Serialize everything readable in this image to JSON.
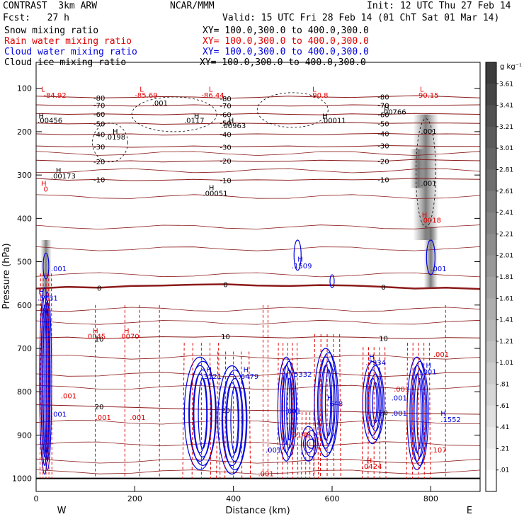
{
  "header": {
    "model": "CONTRAST  3km ARW",
    "center": "NCAR/MMM",
    "init": "Init: 12 UTC Thu 27 Feb 14",
    "fcst": "Fcst:   27 h",
    "valid": "Valid: 15 UTC Fri 28 Feb 14 (01 ChT Sat 01 Mar 14)",
    "fields": [
      {
        "name": "Snow mixing ratio",
        "xy": "XY= 100.0,300.0 to 400.0,300.0",
        "color": "#000000"
      },
      {
        "name": "Rain water mixing ratio",
        "xy": "XY= 100.0,300.0 to 400.0,300.0",
        "color": "#e00000"
      },
      {
        "name": "Cloud water mixing ratio",
        "xy": "XY= 100.0,300.0 to 400.0,300.0",
        "color": "#0000e0"
      },
      {
        "name": "Cloud ice mixing ratio",
        "xy": "XY= 100.0,300.0 to 400.0,300.0",
        "color": "#000000"
      }
    ]
  },
  "chart_data": {
    "type": "contour",
    "ylabel": "Pressure (hPa)",
    "xlabel": "Distance (km)",
    "xlim": [
      0,
      900
    ],
    "ylim": [
      1030,
      40
    ],
    "x_ticks": [
      0,
      200,
      400,
      600,
      800
    ],
    "x_tick_labels": [
      "0",
      "200",
      "400",
      "600",
      "800"
    ],
    "y_ticks": [
      100,
      200,
      300,
      400,
      500,
      600,
      700,
      800,
      900,
      1000
    ],
    "y_tick_labels": [
      "100",
      "200",
      "300",
      "400",
      "500",
      "600",
      "700",
      "800",
      "900",
      "1000"
    ],
    "west_label": "W",
    "east_label": "E",
    "colorbar": {
      "unit": "g kg⁻¹",
      "labels": [
        "3.61",
        "3.41",
        "3.21",
        "3.01",
        "2.81",
        "2.61",
        "2.41",
        "2.21",
        "2.01",
        "1.81",
        "1.61",
        "1.41",
        "1.21",
        "1.01",
        ".81",
        ".61",
        ".41",
        ".21",
        ".01"
      ]
    },
    "isotherms": [
      {
        "level": -80,
        "p": [
          118,
          120,
          122,
          121,
          119,
          120,
          123,
          121,
          118,
          120,
          121,
          119,
          117,
          119,
          122
        ],
        "label": "-80"
      },
      {
        "level": -70,
        "p": [
          138,
          140,
          139,
          141,
          140,
          138,
          140,
          139,
          141,
          140,
          138,
          139,
          140,
          139,
          138
        ],
        "label": "-70"
      },
      {
        "level": -60,
        "p": [
          158,
          160,
          159,
          160,
          161,
          159,
          160,
          158,
          160,
          161,
          159,
          160,
          158,
          159,
          160
        ],
        "label": "-60"
      },
      {
        "level": -50,
        "p": [
          180,
          182,
          181,
          180,
          183,
          182,
          180,
          181,
          182,
          180,
          179,
          181,
          180,
          180,
          181
        ],
        "label": "-50"
      },
      {
        "level": -40,
        "p": [
          205,
          207,
          206,
          205,
          208,
          207,
          206,
          205,
          206,
          207,
          205,
          204,
          206,
          205,
          206
        ],
        "label": "-40"
      },
      {
        "level": -30,
        "p": [
          233,
          235,
          234,
          236,
          235,
          233,
          235,
          234,
          233,
          235,
          234,
          232,
          233,
          234,
          234
        ],
        "label": "-30"
      },
      {
        "level": -20,
        "p": [
          266,
          268,
          269,
          267,
          270,
          268,
          267,
          269,
          268,
          266,
          267,
          268,
          264,
          266,
          267
        ],
        "label": "-20"
      },
      {
        "level": -10,
        "p": [
          308,
          312,
          310,
          313,
          312,
          310,
          312,
          311,
          312,
          310,
          311,
          310,
          308,
          309,
          310
        ],
        "label": "-10"
      },
      {
        "level": 0,
        "p": [
          562,
          558,
          560,
          556,
          555,
          553,
          552,
          555,
          556,
          554,
          555,
          558,
          562,
          560,
          563
        ],
        "label": "0"
      },
      {
        "level": 10,
        "p": [
          676,
          674,
          678,
          675,
          673,
          674,
          672,
          674,
          676,
          673,
          674,
          676,
          678,
          675,
          676
        ],
        "label": "10"
      },
      {
        "level": 20,
        "p": [
          830,
          832,
          834,
          836,
          838,
          840,
          842,
          843,
          844,
          845,
          846,
          848,
          850,
          851,
          852
        ],
        "label": "20"
      }
    ],
    "isotherm_x": [
      0,
      64,
      128,
      192,
      256,
      320,
      384,
      448,
      512,
      576,
      640,
      704,
      768,
      832,
      900
    ],
    "annotations": [
      {
        "t": "L",
        "x": 10,
        "p": 108,
        "c": "red"
      },
      {
        "t": "-84.92",
        "x": 15,
        "p": 122,
        "c": "red"
      },
      {
        "t": "L",
        "x": 210,
        "p": 108,
        "c": "red"
      },
      {
        "t": "-85.69",
        "x": 200,
        "p": 122,
        "c": "red"
      },
      {
        "t": "L",
        "x": 350,
        "p": 108,
        "c": "red"
      },
      {
        "t": "-86.44",
        "x": 335,
        "p": 122,
        "c": "red"
      },
      {
        "t": "L",
        "x": 560,
        "p": 108,
        "c": "red"
      },
      {
        "t": "-90.8",
        "x": 555,
        "p": 122,
        "c": "red"
      },
      {
        "t": "L",
        "x": 778,
        "p": 108,
        "c": "red"
      },
      {
        "t": "-90.15",
        "x": 770,
        "p": 122,
        "c": "red"
      },
      {
        "t": "H",
        "x": 5,
        "p": 170,
        "c": "black"
      },
      {
        "t": ".00456",
        "x": 3,
        "p": 180,
        "c": "black"
      },
      {
        "t": "H",
        "x": 320,
        "p": 170,
        "c": "black"
      },
      {
        "t": ".0117",
        "x": 300,
        "p": 180,
        "c": "black"
      },
      {
        "t": "H",
        "x": 390,
        "p": 180,
        "c": "black"
      },
      {
        "t": ".00963",
        "x": 375,
        "p": 192,
        "c": "black"
      },
      {
        "t": "H",
        "x": 580,
        "p": 170,
        "c": "black"
      },
      {
        "t": ".00011",
        "x": 578,
        "p": 180,
        "c": "black"
      },
      {
        "t": "H",
        "x": 705,
        "p": 150,
        "c": "black"
      },
      {
        "t": ".00766",
        "x": 700,
        "p": 160,
        "c": "black"
      },
      {
        "t": "H",
        "x": 155,
        "p": 205,
        "c": "black"
      },
      {
        "t": ".0198",
        "x": 140,
        "p": 218,
        "c": "black"
      },
      {
        "t": "H",
        "x": 40,
        "p": 295,
        "c": "black"
      },
      {
        "t": ".00173",
        "x": 30,
        "p": 308,
        "c": "black"
      },
      {
        "t": "H",
        "x": 350,
        "p": 335,
        "c": "black"
      },
      {
        "t": ".00051",
        "x": 338,
        "p": 348,
        "c": "black"
      },
      {
        "t": ".001",
        "x": 780,
        "p": 205,
        "c": "black"
      },
      {
        "t": ".001",
        "x": 780,
        "p": 325,
        "c": "black"
      },
      {
        "t": ".001",
        "x": 235,
        "p": 140,
        "c": "black"
      },
      {
        "t": "H",
        "x": 10,
        "p": 325,
        "c": "red"
      },
      {
        "t": "0",
        "x": 15,
        "p": 338,
        "c": "red"
      },
      {
        "t": "H",
        "x": 782,
        "p": 398,
        "c": "red"
      },
      {
        "t": ".0018",
        "x": 780,
        "p": 410,
        "c": "red"
      },
      {
        "t": "H",
        "x": 115,
        "p": 665,
        "c": "red"
      },
      {
        "t": ".0045",
        "x": 100,
        "p": 678,
        "c": "red"
      },
      {
        "t": "H",
        "x": 178,
        "p": 665,
        "c": "red"
      },
      {
        "t": ".0070",
        "x": 168,
        "p": 678,
        "c": "red"
      },
      {
        "t": ".001",
        "x": 50,
        "p": 815,
        "c": "red"
      },
      {
        "t": ".001",
        "x": 120,
        "p": 865,
        "c": "red"
      },
      {
        "t": ".001",
        "x": 190,
        "p": 865,
        "c": "red"
      },
      {
        "t": ".0148",
        "x": 515,
        "p": 905,
        "c": "red"
      },
      {
        "t": "H",
        "x": 670,
        "p": 965,
        "c": "red"
      },
      {
        "t": ".0424",
        "x": 660,
        "p": 978,
        "c": "red"
      },
      {
        "t": ".107",
        "x": 800,
        "p": 940,
        "c": "red"
      },
      {
        "t": ".001",
        "x": 450,
        "p": 995,
        "c": "red"
      },
      {
        "t": ".001",
        "x": 805,
        "p": 720,
        "c": "red"
      },
      {
        "t": ".001",
        "x": 725,
        "p": 800,
        "c": "red"
      },
      {
        "t": "H",
        "x": 5,
        "p": 575,
        "c": "blue"
      },
      {
        "t": ".5731",
        "x": 3,
        "p": 590,
        "c": "blue"
      },
      {
        "t": ".001",
        "x": 30,
        "p": 522,
        "c": "blue"
      },
      {
        "t": ".001",
        "x": 30,
        "p": 858,
        "c": "blue"
      },
      {
        "t": "H",
        "x": 530,
        "p": 500,
        "c": "blue"
      },
      {
        "t": ".1509",
        "x": 518,
        "p": 515,
        "c": "blue"
      },
      {
        "t": ".001",
        "x": 800,
        "p": 522,
        "c": "blue"
      },
      {
        "t": "H",
        "x": 345,
        "p": 755,
        "c": "blue"
      },
      {
        "t": ".3121",
        "x": 335,
        "p": 770,
        "c": "blue"
      },
      {
        "t": "H",
        "x": 420,
        "p": 755,
        "c": "blue"
      },
      {
        "t": ".6479",
        "x": 410,
        "p": 770,
        "c": "blue"
      },
      {
        "t": ".5332",
        "x": 518,
        "p": 765,
        "c": "blue"
      },
      {
        "t": "H",
        "x": 675,
        "p": 725,
        "c": "blue"
      },
      {
        "t": ".7934",
        "x": 668,
        "p": 738,
        "c": "blue"
      },
      {
        "t": "H",
        "x": 590,
        "p": 820,
        "c": "blue"
      },
      {
        "t": ".648",
        "x": 590,
        "p": 833,
        "c": "blue"
      },
      {
        "t": ".001",
        "x": 720,
        "p": 820,
        "c": "blue"
      },
      {
        "t": ".001",
        "x": 720,
        "p": 855,
        "c": "blue"
      },
      {
        "t": ".001",
        "x": 505,
        "p": 850,
        "c": "blue"
      },
      {
        "t": ".001",
        "x": 465,
        "p": 940,
        "c": "blue"
      },
      {
        "t": "H",
        "x": 820,
        "p": 855,
        "c": "blue"
      },
      {
        "t": ".1552",
        "x": 820,
        "p": 870,
        "c": "blue"
      },
      {
        "t": ".001",
        "x": 780,
        "p": 760,
        "c": "blue"
      },
      {
        "t": "H",
        "x": 790,
        "p": 745,
        "c": "blue"
      }
    ]
  }
}
